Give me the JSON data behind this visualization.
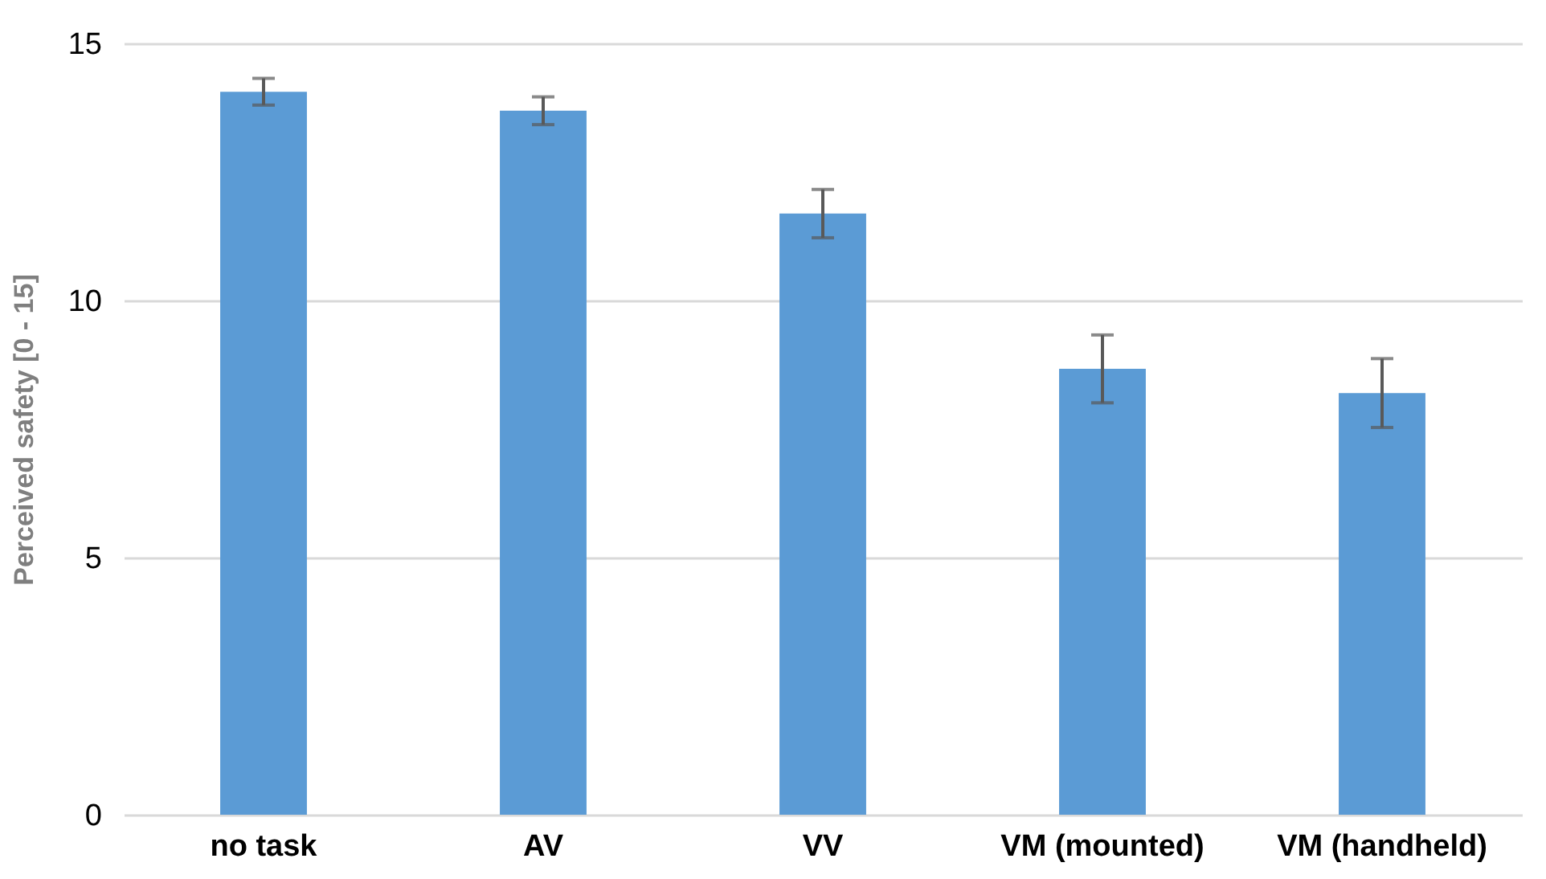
{
  "chart_data": {
    "type": "bar",
    "ylabel": "Perceived safety [0 - 15]",
    "categories": [
      "no task",
      "AV",
      "VV",
      "VM (mounted)",
      "VM (handheld)"
    ],
    "values": [
      14.06,
      13.69,
      11.69,
      8.67,
      8.2
    ],
    "errors": [
      0.26,
      0.27,
      0.47,
      0.66,
      0.67
    ],
    "color": "#5b9bd5",
    "ylim": [
      0,
      15
    ],
    "yticks": [
      0,
      5,
      10,
      15
    ],
    "grid": "y"
  }
}
